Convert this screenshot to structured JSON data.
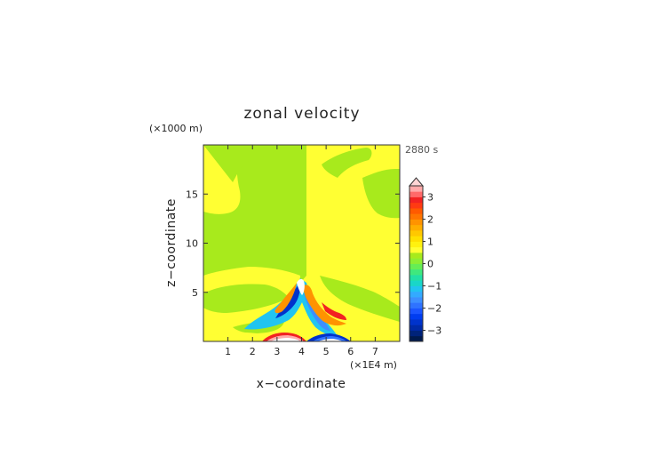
{
  "chart_data": {
    "type": "heatmap",
    "title": "zonal velocity",
    "time_label": "2880 s",
    "xlabel": "x−coordinate",
    "ylabel": "z−coordinate",
    "x_unit": "(×1E4 m)",
    "y_unit": "(×1000 m)",
    "xlim": [
      0,
      8
    ],
    "ylim": [
      0,
      20
    ],
    "x_ticks": [
      1,
      2,
      3,
      4,
      5,
      6,
      7
    ],
    "y_ticks": [
      5,
      10,
      15
    ],
    "grid": false,
    "colorbar": {
      "min": -3.5,
      "max": 3.5,
      "step": 0.25,
      "tick_values": [
        3,
        2,
        1,
        0,
        -1,
        -2,
        -3
      ],
      "tick_labels": [
        "3",
        "2",
        "1",
        "0",
        "−1",
        "−2",
        "−3"
      ],
      "extend": "max",
      "colors": [
        "#001a4d",
        "#00237a",
        "#002aa8",
        "#0033cc",
        "#003df0",
        "#1a55ff",
        "#2f73ff",
        "#3d8fff",
        "#33aaff",
        "#21c4f0",
        "#19d6c8",
        "#22e0a6",
        "#3fe87e",
        "#66ee55",
        "#8eee33",
        "#a8ea1c",
        "#ffff33",
        "#fff20f",
        "#ffe000",
        "#ffc800",
        "#ffae00",
        "#ff9300",
        "#ff7500",
        "#ff5a00",
        "#ff3a12",
        "#f22222",
        "#ff6a6a",
        "#ffaaaa"
      ],
      "extend_color": "#ffd5d5"
    }
  }
}
